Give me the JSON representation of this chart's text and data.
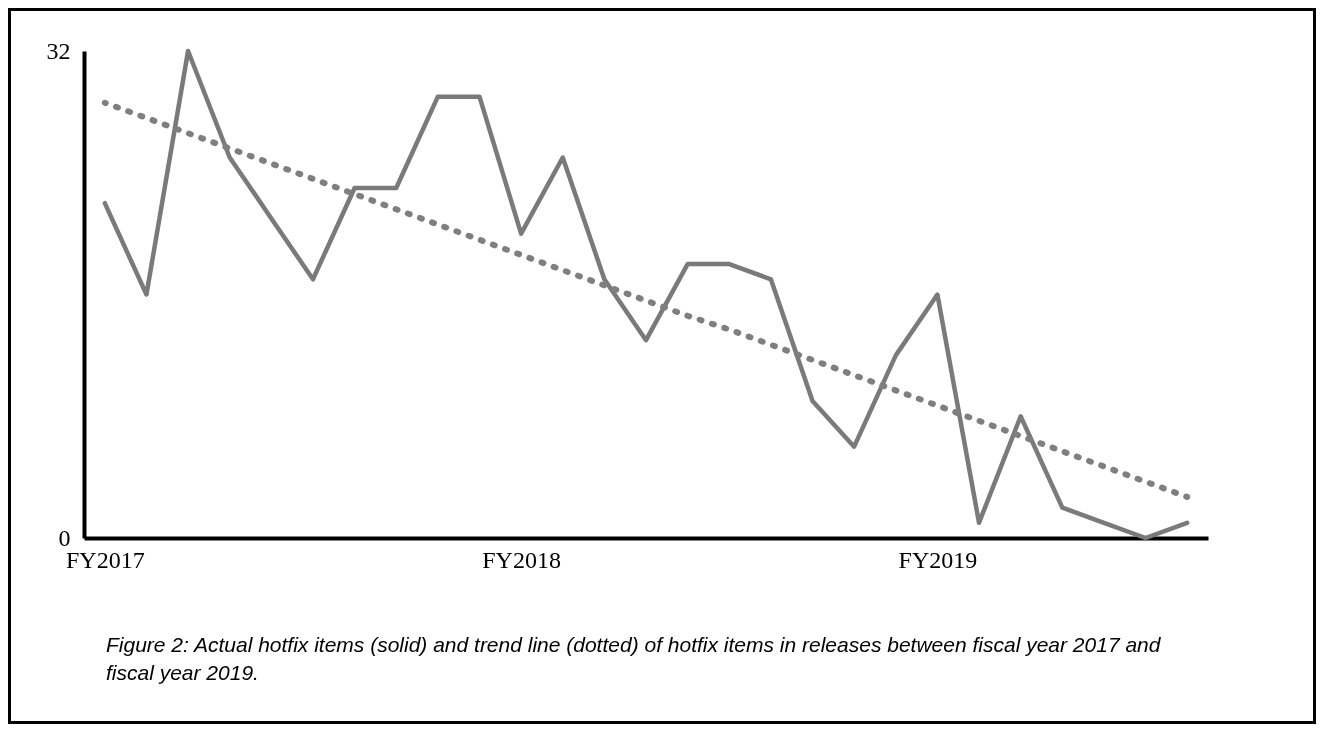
{
  "chart_data": {
    "type": "line",
    "categories": [
      "FY2017",
      null,
      null,
      null,
      null,
      null,
      null,
      null,
      null,
      null,
      "FY2018",
      null,
      null,
      null,
      null,
      null,
      null,
      null,
      null,
      null,
      "FY2019",
      null,
      null,
      null,
      null,
      null,
      null
    ],
    "series": [
      {
        "color": "#7a7a7a",
        "line_style": "solid",
        "values": [
          22,
          16,
          32,
          25,
          21,
          17,
          23,
          23,
          29,
          29,
          20,
          25,
          17,
          13,
          18,
          18,
          17,
          9,
          6,
          12,
          16,
          1,
          8,
          2,
          1,
          0,
          1
        ]
      },
      {
        "type": "line",
        "color": "#7f7f7f",
        "line_style": "dotted",
        "values": [
          28.6,
          27.6,
          26.6,
          25.6,
          24.6,
          23.6,
          22.6,
          21.6,
          20.6,
          19.6,
          18.6,
          17.6,
          16.6,
          15.6,
          14.6,
          13.7,
          12.7,
          11.7,
          10.7,
          9.7,
          8.7,
          7.7,
          6.7,
          5.7,
          4.7,
          3.7,
          2.7
        ]
      }
    ],
    "ylim": [
      0,
      32
    ],
    "yticks": [
      0,
      32
    ],
    "grid": false,
    "marker": "none",
    "annotations": [
      "Figure 2: Actual hotfix items (solid) and trend line (dotted) of hotfix items in releases between fiscal year 2017 and fiscal year 2019."
    ]
  }
}
